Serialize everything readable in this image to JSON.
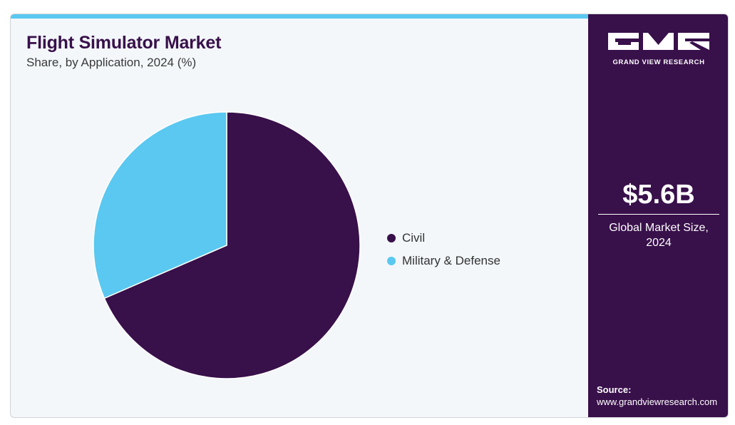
{
  "header": {
    "title": "Flight Simulator Market",
    "subtitle": "Share, by Application, 2024 (%)"
  },
  "chart_data": {
    "type": "pie",
    "categories": [
      "Civil",
      "Military & Defense"
    ],
    "values": [
      68.5,
      31.5
    ],
    "colors": [
      "#38104a",
      "#5ac8f0"
    ],
    "start_angle": "12 o'clock",
    "direction": "clockwise",
    "legend_position": "right"
  },
  "side_panel": {
    "logo": {
      "text": "GRAND VIEW RESEARCH",
      "letters": [
        "G",
        "V",
        "R"
      ]
    },
    "market_size": "$5.6B",
    "market_caption_line1": "Global Market Size,",
    "market_caption_line2": "2024",
    "source_label": "Source:",
    "source_url": "www.grandviewresearch.com"
  },
  "colors": {
    "accent": "#5ac8f0",
    "brand": "#38104a",
    "background": "#f3f7fa"
  }
}
